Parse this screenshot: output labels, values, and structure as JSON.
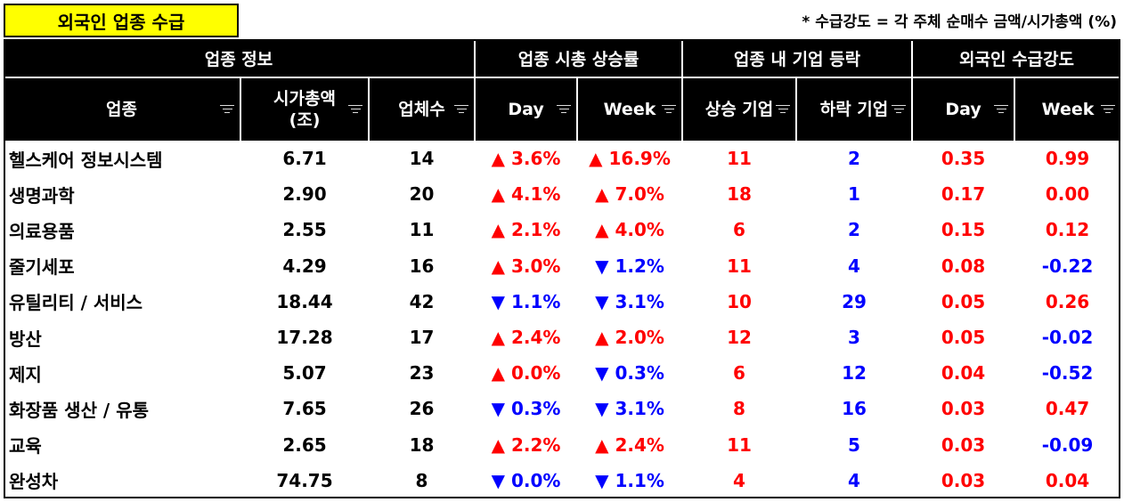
{
  "title": "외국인 업종 수급",
  "note": "* 수급강도 = 각 주체 순매수 금액/시가총액 (%)",
  "group_headers": [
    "업종 정보",
    "업종 시총 상승률",
    "업종 내 기업 등락",
    "외국인 수급강도"
  ],
  "column_headers": [
    "업종",
    "시가총액\n(조)",
    "업체수",
    "Day",
    "Week",
    "상승 기업",
    "하락 기업",
    "Day",
    "Week"
  ],
  "colors": {
    "up": "#ff0000",
    "down": "#0000ff",
    "title_bg": "#ffff00",
    "header_bg": "#000000"
  },
  "rows": [
    {
      "sector": "헬스케어 정보시스템",
      "mcap": "6.71",
      "count": "14",
      "day": "▲ 3.6%",
      "week": "▲ 16.9%",
      "up": "11",
      "down": "2",
      "f_day": "0.35",
      "f_week": "0.99"
    },
    {
      "sector": "생명과학",
      "mcap": "2.90",
      "count": "20",
      "day": "▲ 4.1%",
      "week": "▲ 7.0%",
      "up": "18",
      "down": "1",
      "f_day": "0.17",
      "f_week": "0.00"
    },
    {
      "sector": "의료용품",
      "mcap": "2.55",
      "count": "11",
      "day": "▲ 2.1%",
      "week": "▲ 4.0%",
      "up": "6",
      "down": "2",
      "f_day": "0.15",
      "f_week": "0.12"
    },
    {
      "sector": "줄기세포",
      "mcap": "4.29",
      "count": "16",
      "day": "▲ 3.0%",
      "week": "▼ 1.2%",
      "up": "11",
      "down": "4",
      "f_day": "0.08",
      "f_week": "-0.22"
    },
    {
      "sector": "유틸리티 / 서비스",
      "mcap": "18.44",
      "count": "42",
      "day": "▼ 1.1%",
      "week": "▼ 3.1%",
      "up": "10",
      "down": "29",
      "f_day": "0.05",
      "f_week": "0.26"
    },
    {
      "sector": "방산",
      "mcap": "17.28",
      "count": "17",
      "day": "▲ 2.4%",
      "week": "▲ 2.0%",
      "up": "12",
      "down": "3",
      "f_day": "0.05",
      "f_week": "-0.02"
    },
    {
      "sector": "제지",
      "mcap": "5.07",
      "count": "23",
      "day": "▲ 0.0%",
      "week": "▼ 0.3%",
      "up": "6",
      "down": "12",
      "f_day": "0.04",
      "f_week": "-0.52"
    },
    {
      "sector": "화장품 생산 / 유통",
      "mcap": "7.65",
      "count": "26",
      "day": "▼ 0.3%",
      "week": "▼ 3.1%",
      "up": "8",
      "down": "16",
      "f_day": "0.03",
      "f_week": "0.47"
    },
    {
      "sector": "교육",
      "mcap": "2.65",
      "count": "18",
      "day": "▲ 2.2%",
      "week": "▲ 2.4%",
      "up": "11",
      "down": "5",
      "f_day": "0.03",
      "f_week": "-0.09"
    },
    {
      "sector": "완성차",
      "mcap": "74.75",
      "count": "8",
      "day": "▼ 0.0%",
      "week": "▼ 1.1%",
      "up": "4",
      "down": "4",
      "f_day": "0.03",
      "f_week": "0.04"
    }
  ]
}
